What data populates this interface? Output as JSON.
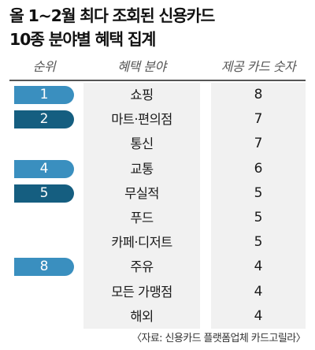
{
  "title": {
    "line1": "올 1~2월 최다 조회된 신용카드",
    "line2": "10종 분야별 혜택 집계"
  },
  "source": "〈자료: 신용카드 플랫폼업체 카드고릴라〉",
  "colors": {
    "rank_light": "#3a8fbf",
    "rank_dark": "#155e80",
    "column_bg": "#f1f1f1"
  },
  "chart_data": {
    "type": "table",
    "title": "올 1~2월 최다 조회된 신용카드 10종 분야별 혜택 집계",
    "columns": [
      "순위",
      "혜택 분야",
      "제공 카드 숫자"
    ],
    "rows": [
      {
        "rank": "1",
        "benefit": "쇼핑",
        "count": 8,
        "rank_color": "light"
      },
      {
        "rank": "2",
        "benefit": "마트·편의점",
        "count": 7,
        "rank_color": "dark"
      },
      {
        "rank": "",
        "benefit": "통신",
        "count": 7,
        "rank_color": ""
      },
      {
        "rank": "4",
        "benefit": "교통",
        "count": 6,
        "rank_color": "light"
      },
      {
        "rank": "5",
        "benefit": "무실적",
        "count": 5,
        "rank_color": "dark"
      },
      {
        "rank": "",
        "benefit": "푸드",
        "count": 5,
        "rank_color": ""
      },
      {
        "rank": "",
        "benefit": "카페·디저트",
        "count": 5,
        "rank_color": ""
      },
      {
        "rank": "8",
        "benefit": "주유",
        "count": 4,
        "rank_color": "light"
      },
      {
        "rank": "",
        "benefit": "모든 가맹점",
        "count": 4,
        "rank_color": ""
      },
      {
        "rank": "",
        "benefit": "해외",
        "count": 4,
        "rank_color": ""
      }
    ]
  }
}
